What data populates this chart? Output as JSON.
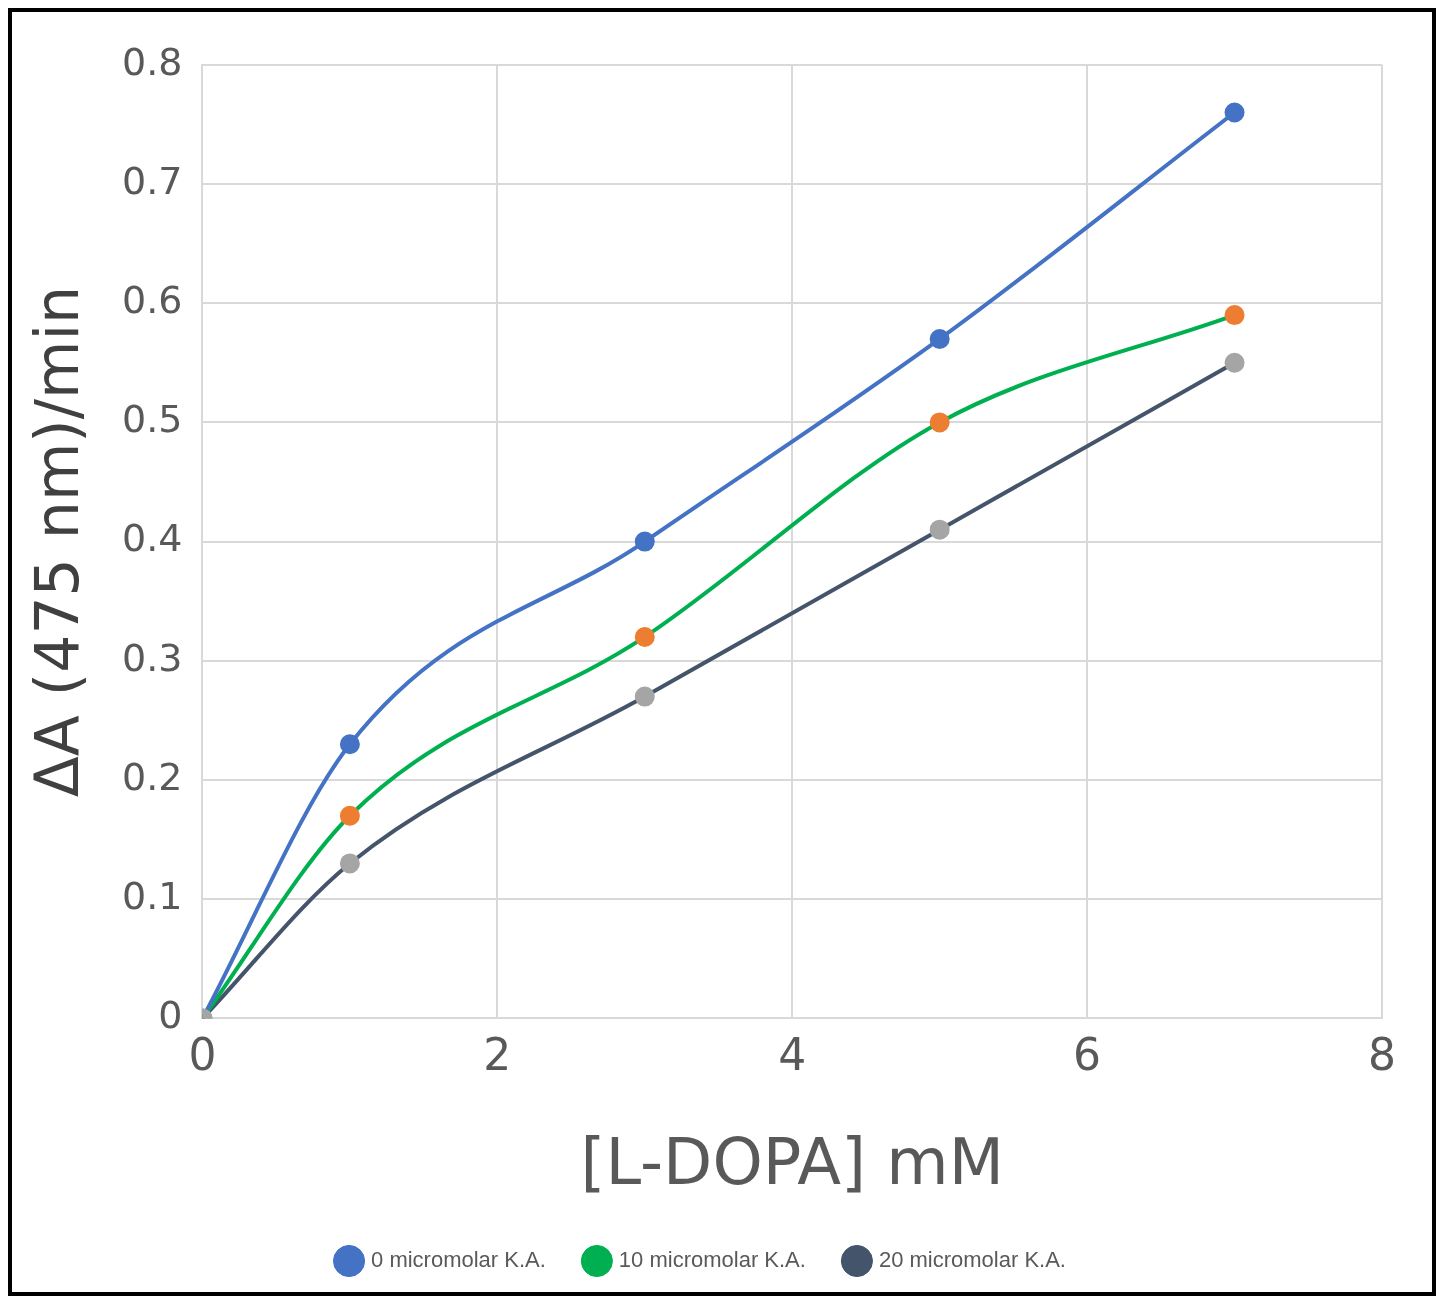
{
  "chart_data": {
    "type": "line",
    "xlabel": "[L-DOPA] mM",
    "ylabel": "ΔA (475 nm)/min",
    "x": [
      0,
      1,
      3,
      5,
      7
    ],
    "series": [
      {
        "name": "0 micromolar K.A.",
        "color": "#4472c4",
        "colors": [
          "#a5a5a5",
          "#4472c4",
          "#4472c4",
          "#4472c4",
          "#4472c4"
        ],
        "values": [
          0,
          0.23,
          0.4,
          0.57,
          0.76
        ]
      },
      {
        "name": "10 micromolar K.A.",
        "color": "#00b050",
        "colors": [
          "#a5a5a5",
          "#ed7d31",
          "#ed7d31",
          "#ed7d31",
          "#ed7d31"
        ],
        "values": [
          0,
          0.17,
          0.32,
          0.5,
          0.59
        ]
      },
      {
        "name": "20 micromolar K.A.",
        "color": "#44546a",
        "colors": [
          "#a5a5a5",
          "#a5a5a5",
          "#a5a5a5",
          "#a5a5a5",
          "#a5a5a5"
        ],
        "values": [
          0,
          0.13,
          0.27,
          0.41,
          0.55
        ]
      }
    ],
    "xlim": [
      0,
      8
    ],
    "xticks": [
      0,
      2,
      4,
      6,
      8
    ],
    "ylim": [
      0,
      0.8
    ],
    "yticks": [
      0,
      0.1,
      0.2,
      0.3,
      0.4,
      0.5,
      0.6,
      0.7,
      0.8
    ],
    "grid": true,
    "legend": "bottom",
    "marker": "circle",
    "line_style": "solid"
  }
}
